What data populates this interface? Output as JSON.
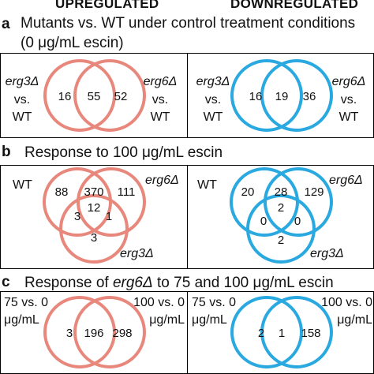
{
  "colors": {
    "upregulated": "#e8877c",
    "downregulated": "#29a9e0"
  },
  "headers": {
    "up": "UPREGULATED",
    "down": "DOWNREGULATED"
  },
  "panel_a": {
    "letter": "a",
    "title_line1": "Mutants vs. WT under control treatment conditions",
    "title_line2": "(0 μg/mL escin)",
    "up": {
      "left_label_1": "erg3Δ",
      "left_label_2": "vs.",
      "left_label_3": "WT",
      "right_label_1": "erg6Δ",
      "right_label_2": "vs.",
      "right_label_3": "WT",
      "left_only": "16",
      "both": "55",
      "right_only": "52"
    },
    "down": {
      "left_label_1": "erg3Δ",
      "left_label_2": "vs.",
      "left_label_3": "WT",
      "right_label_1": "erg6Δ",
      "right_label_2": "vs.",
      "right_label_3": "WT",
      "left_only": "16",
      "both": "19",
      "right_only": "36"
    }
  },
  "panel_b": {
    "letter": "b",
    "title": "Response to 100 μg/mL escin",
    "up": {
      "label_wt": "WT",
      "label_erg6": "erg6Δ",
      "label_erg3": "erg3Δ",
      "wt_only": "88",
      "wt_erg6": "370",
      "erg6_only": "111",
      "wt_erg3": "3",
      "all_three": "12",
      "erg6_erg3": "1",
      "erg3_only": "3"
    },
    "down": {
      "label_wt": "WT",
      "label_erg6": "erg6Δ",
      "label_erg3": "erg3Δ",
      "wt_only": "20",
      "wt_erg6": "28",
      "erg6_only": "129",
      "wt_erg3": "0",
      "all_three": "2",
      "erg6_erg3": "0",
      "erg3_only": "2"
    }
  },
  "panel_c": {
    "letter": "c",
    "title_pre": "Response of ",
    "title_gene": "erg6Δ",
    "title_post": " to 75 and 100 μg/mL escin",
    "up": {
      "left_label_1": "75 vs. 0",
      "left_label_2": "μg/mL",
      "right_label_1": "100 vs. 0",
      "right_label_2": "μg/mL",
      "left_only": "3",
      "both": "196",
      "right_only": "298"
    },
    "down": {
      "left_label_1": "75 vs. 0",
      "left_label_2": "μg/mL",
      "right_label_1": "100 vs. 0",
      "right_label_2": "μg/mL",
      "left_only": "2",
      "both": "1",
      "right_only": "158"
    }
  }
}
